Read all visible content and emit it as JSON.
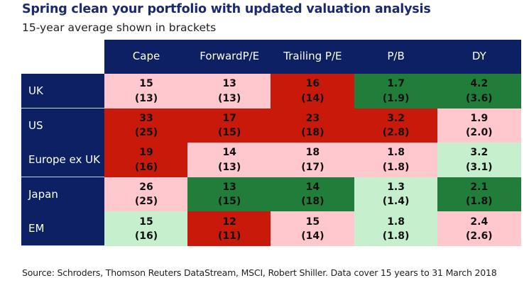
{
  "title": "Spring clean your portfolio with updated valuation analysis",
  "subtitle": "15-year average shown in brackets",
  "footer": "Source: Schroders, Thomson Reuters DataStream, MSCI, Robert Shiller. Data cover 15 years to 31 March 2018",
  "colors": {
    "header_bg": "#0d2063",
    "dark_red": "#c9190b",
    "light_pink": "#ffc7ce",
    "dark_green": "#217e3a",
    "light_green": "#c6efce"
  },
  "chart_data": {
    "type": "table",
    "title": "Spring clean your portfolio with updated valuation analysis",
    "subtitle": "15-year average shown in brackets",
    "columns": [
      "Cape",
      "Forward P/E",
      "Trailing P/E",
      "P/B",
      "DY"
    ],
    "rows": [
      {
        "label": "UK",
        "cells": [
          {
            "value": "15",
            "avg": "(13)",
            "shade": "light_pink"
          },
          {
            "value": "13",
            "avg": "(13)",
            "shade": "light_pink"
          },
          {
            "value": "16",
            "avg": "(14)",
            "shade": "dark_red"
          },
          {
            "value": "1.7",
            "avg": "(1.9)",
            "shade": "dark_green"
          },
          {
            "value": "4.2",
            "avg": "(3.6)",
            "shade": "dark_green"
          }
        ]
      },
      {
        "label": "US",
        "cells": [
          {
            "value": "33",
            "avg": "(25)",
            "shade": "dark_red"
          },
          {
            "value": "17",
            "avg": "(15)",
            "shade": "dark_red"
          },
          {
            "value": "23",
            "avg": "(18)",
            "shade": "dark_red"
          },
          {
            "value": "3.2",
            "avg": "(2.8)",
            "shade": "dark_red"
          },
          {
            "value": "1.9",
            "avg": "(2.0)",
            "shade": "light_pink"
          }
        ]
      },
      {
        "label": "Europe ex UK",
        "cells": [
          {
            "value": "19",
            "avg": "(16)",
            "shade": "dark_red"
          },
          {
            "value": "14",
            "avg": "(13)",
            "shade": "light_pink"
          },
          {
            "value": "18",
            "avg": "(17)",
            "shade": "light_pink"
          },
          {
            "value": "1.8",
            "avg": "(1.8)",
            "shade": "light_pink"
          },
          {
            "value": "3.2",
            "avg": "(3.1)",
            "shade": "light_green"
          }
        ]
      },
      {
        "label": "Japan",
        "cells": [
          {
            "value": "26",
            "avg": "(25)",
            "shade": "light_pink"
          },
          {
            "value": "13",
            "avg": "(15)",
            "shade": "dark_green"
          },
          {
            "value": "14",
            "avg": "(18)",
            "shade": "dark_green"
          },
          {
            "value": "1.3",
            "avg": "(1.4)",
            "shade": "light_green"
          },
          {
            "value": "2.1",
            "avg": "(1.8)",
            "shade": "dark_green"
          }
        ]
      },
      {
        "label": "EM",
        "cells": [
          {
            "value": "15",
            "avg": "(16)",
            "shade": "light_green"
          },
          {
            "value": "12",
            "avg": "(11)",
            "shade": "dark_red"
          },
          {
            "value": "15",
            "avg": "(14)",
            "shade": "light_pink"
          },
          {
            "value": "1.8",
            "avg": "(1.8)",
            "shade": "light_green"
          },
          {
            "value": "2.4",
            "avg": "(2.6)",
            "shade": "light_pink"
          }
        ]
      }
    ]
  }
}
